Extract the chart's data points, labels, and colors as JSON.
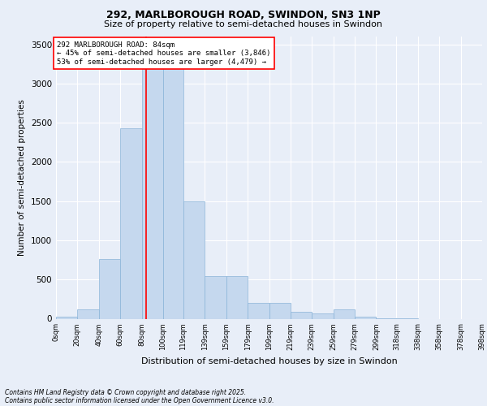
{
  "title_line1": "292, MARLBOROUGH ROAD, SWINDON, SN3 1NP",
  "title_line2": "Size of property relative to semi-detached houses in Swindon",
  "xlabel": "Distribution of semi-detached houses by size in Swindon",
  "ylabel": "Number of semi-detached properties",
  "annotation_line1": "292 MARLBOROUGH ROAD: 84sqm",
  "annotation_line2": "← 45% of semi-detached houses are smaller (3,846)",
  "annotation_line3": "53% of semi-detached houses are larger (4,479) →",
  "footnote1": "Contains HM Land Registry data © Crown copyright and database right 2025.",
  "footnote2": "Contains public sector information licensed under the Open Government Licence v3.0.",
  "bar_edges": [
    0,
    20,
    40,
    60,
    80,
    100,
    119,
    139,
    159,
    179,
    199,
    219,
    239,
    259,
    279,
    299,
    318,
    338,
    358,
    378,
    398
  ],
  "bar_heights": [
    30,
    120,
    760,
    2430,
    3300,
    3280,
    1500,
    540,
    540,
    200,
    200,
    85,
    70,
    120,
    30,
    5,
    5,
    0,
    0,
    0
  ],
  "bar_color": "#c5d8ee",
  "bar_edgecolor": "#8ab4d8",
  "vline_x": 84,
  "vline_color": "red",
  "ylim": [
    0,
    3600
  ],
  "xlim": [
    0,
    398
  ],
  "background_color": "#e8eef8",
  "plot_bg_color": "#e8eef8",
  "grid_color": "#ffffff",
  "tick_labels": [
    "0sqm",
    "20sqm",
    "40sqm",
    "60sqm",
    "80sqm",
    "100sqm",
    "119sqm",
    "139sqm",
    "159sqm",
    "179sqm",
    "199sqm",
    "219sqm",
    "239sqm",
    "259sqm",
    "279sqm",
    "299sqm",
    "318sqm",
    "338sqm",
    "358sqm",
    "378sqm",
    "398sqm"
  ],
  "yticks": [
    0,
    500,
    1000,
    1500,
    2000,
    2500,
    3000,
    3500
  ],
  "title1_fontsize": 9,
  "title2_fontsize": 8,
  "ylabel_fontsize": 7.5,
  "xlabel_fontsize": 8,
  "ytick_fontsize": 7.5,
  "xtick_fontsize": 6,
  "annot_fontsize": 6.5,
  "footnote_fontsize": 5.5
}
